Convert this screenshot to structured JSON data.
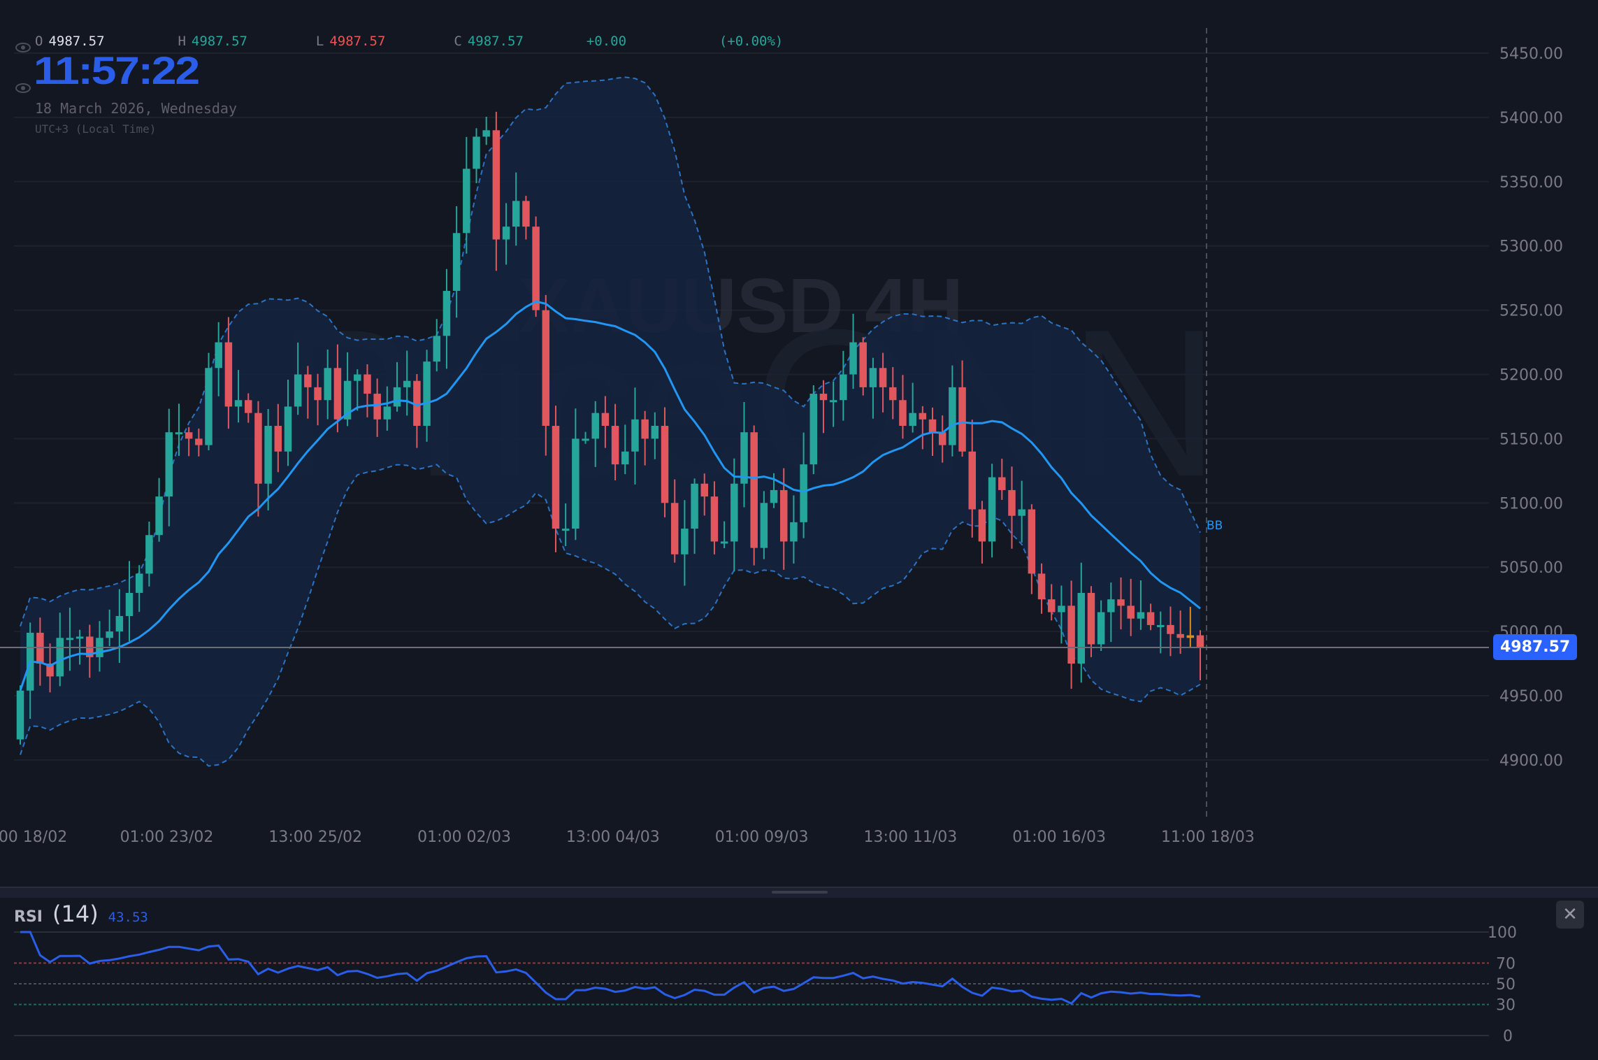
{
  "legend": {
    "open_label": "O",
    "open": "4987.57",
    "high_label": "H",
    "high": "4987.57",
    "low_label": "L",
    "low": "4987.57",
    "close_label": "C",
    "close": "4987.57",
    "change": "+0.00",
    "change_pct": "(+0.00%)"
  },
  "clock": {
    "time": "11:57:22",
    "date": "18 March 2026, Wednesday",
    "timezone": "UTC+3 (Local Time)"
  },
  "watermark": {
    "symbol": "XAUUSD 4H",
    "brand": "PriceONN"
  },
  "current_price": "4987.57",
  "bb_label": "BB",
  "colors": {
    "up": "#26a69a",
    "down": "#e0575e",
    "basis": "#2196f3",
    "band_fill": "#15233f",
    "live": "#e08a1e",
    "badge": "#2962ff",
    "rsi": "#2a5ee8"
  },
  "chart_data": {
    "type": "candlestick",
    "symbol": "XAUUSD",
    "timeframe": "4H",
    "y_ticks": [
      "5450.00",
      "5400.00",
      "5350.00",
      "5300.00",
      "5250.00",
      "5200.00",
      "5150.00",
      "5100.00",
      "5050.00",
      "5000.00",
      "4950.00",
      "4900.00"
    ],
    "y_tick_values": [
      5450,
      5400,
      5350,
      5300,
      5250,
      5200,
      5150,
      5100,
      5050,
      5000,
      4950,
      4900
    ],
    "ylim": [
      4863,
      5510
    ],
    "x_ticks": [
      "00 18/02",
      "01:00 23/02",
      "13:00 25/02",
      "01:00 02/03",
      "13:00 04/03",
      "01:00 09/03",
      "13:00 11/03",
      "01:00 16/03",
      "11:00 18/03"
    ],
    "x_tick_index": [
      1,
      14.5,
      29.5,
      44.5,
      59.5,
      74.5,
      89.5,
      104.5,
      119.5
    ],
    "first_open": 4916,
    "closes": [
      4954,
      4999,
      4975,
      4965,
      4995,
      4995,
      4996,
      4980,
      4995,
      5000,
      5012,
      5030,
      5045,
      5075,
      5105,
      5155,
      5155,
      5150,
      5145,
      5205,
      5225,
      5175,
      5180,
      5170,
      5115,
      5160,
      5140,
      5175,
      5200,
      5190,
      5180,
      5205,
      5165,
      5195,
      5200,
      5185,
      5165,
      5175,
      5190,
      5195,
      5160,
      5210,
      5230,
      5265,
      5310,
      5360,
      5385,
      5390,
      5305,
      5315,
      5335,
      5315,
      5250,
      5160,
      5080,
      5080,
      5150,
      5150,
      5170,
      5160,
      5130,
      5140,
      5165,
      5150,
      5160,
      5100,
      5060,
      5080,
      5115,
      5105,
      5070,
      5070,
      5115,
      5155,
      5065,
      5100,
      5110,
      5070,
      5085,
      5130,
      5185,
      5180,
      5180,
      5200,
      5225,
      5190,
      5205,
      5190,
      5180,
      5160,
      5170,
      5165,
      5155,
      5145,
      5190,
      5140,
      5095,
      5070,
      5120,
      5110,
      5090,
      5095,
      5045,
      5025,
      5015,
      5020,
      4975,
      5030,
      4990,
      5015,
      5025,
      5020,
      5010,
      5015,
      5005,
      5005,
      4998,
      4995,
      4997,
      4987.57
    ],
    "bollinger": {
      "period": 20,
      "mult": 2
    },
    "rsi": {
      "title": "RSI",
      "length": "(14)",
      "last": "43.53",
      "levels": [
        70,
        50,
        30
      ],
      "ticks": [
        "100",
        "70",
        "50",
        "30",
        "0"
      ],
      "tick_values": [
        100,
        70,
        50,
        30,
        0
      ]
    }
  }
}
